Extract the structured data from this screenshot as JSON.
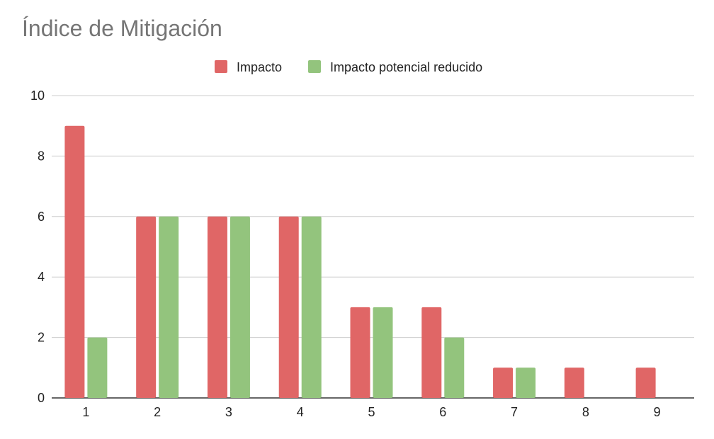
{
  "chart_data": {
    "type": "bar",
    "title": "Índice de Mitigación",
    "xlabel": "",
    "ylabel": "",
    "categories": [
      "1",
      "2",
      "3",
      "4",
      "5",
      "6",
      "7",
      "8",
      "9"
    ],
    "series": [
      {
        "name": "Impacto",
        "color": "#e06666",
        "values": [
          9,
          6,
          6,
          6,
          3,
          3,
          1,
          1,
          1
        ]
      },
      {
        "name": "Impacto potencial reducido",
        "color": "#93c47d",
        "values": [
          2,
          6,
          6,
          6,
          3,
          2,
          1,
          0,
          0
        ]
      }
    ],
    "ylim": [
      0,
      10
    ],
    "yticks": [
      0,
      2,
      4,
      6,
      8,
      10
    ],
    "grid": true,
    "legend_position": "top-center"
  }
}
